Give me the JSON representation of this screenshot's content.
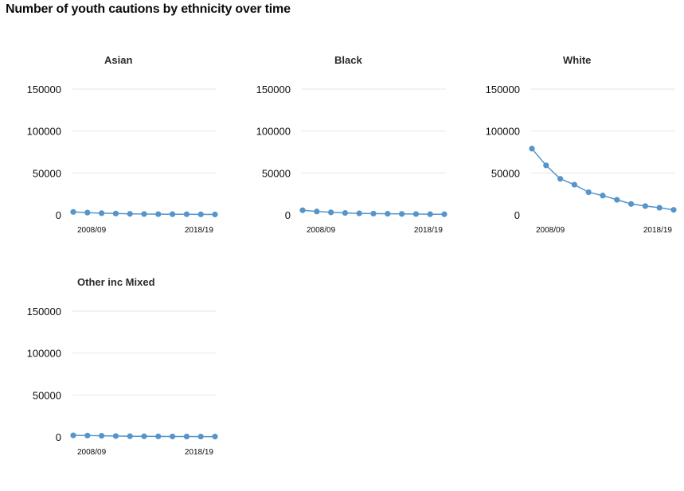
{
  "title": "Number of youth cautions by ethnicity over time",
  "colors": {
    "series": "#5694ca",
    "grid": "#e6e6e6"
  },
  "chart_data": [
    {
      "type": "line",
      "title": "Asian",
      "x": [
        "2008/09",
        "2009/10",
        "2010/11",
        "2011/12",
        "2012/13",
        "2013/14",
        "2014/15",
        "2015/16",
        "2016/17",
        "2017/18",
        "2018/19"
      ],
      "x_tick_labels": [
        "2008/09",
        "2018/19"
      ],
      "y_ticks": [
        0,
        50000,
        100000,
        150000
      ],
      "ylim": [
        0,
        150000
      ],
      "values": [
        3500,
        2700,
        2000,
        1600,
        1200,
        1000,
        900,
        800,
        700,
        600,
        500
      ],
      "grid": true
    },
    {
      "type": "line",
      "title": "Black",
      "x": [
        "2008/09",
        "2009/10",
        "2010/11",
        "2011/12",
        "2012/13",
        "2013/14",
        "2014/15",
        "2015/16",
        "2016/17",
        "2017/18",
        "2018/19"
      ],
      "x_tick_labels": [
        "2008/09",
        "2018/19"
      ],
      "y_ticks": [
        0,
        50000,
        100000,
        150000
      ],
      "ylim": [
        0,
        150000
      ],
      "values": [
        5500,
        4000,
        3000,
        2300,
        1800,
        1500,
        1300,
        1100,
        1000,
        800,
        700
      ],
      "grid": true
    },
    {
      "type": "line",
      "title": "White",
      "x": [
        "2008/09",
        "2009/10",
        "2010/11",
        "2011/12",
        "2012/13",
        "2013/14",
        "2014/15",
        "2015/16",
        "2016/17",
        "2017/18",
        "2018/19"
      ],
      "x_tick_labels": [
        "2008/09",
        "2018/19"
      ],
      "y_ticks": [
        0,
        50000,
        100000,
        150000
      ],
      "ylim": [
        0,
        150000
      ],
      "values": [
        79000,
        59000,
        43000,
        36000,
        27000,
        23000,
        18000,
        13000,
        10500,
        8500,
        6000
      ],
      "grid": true
    },
    {
      "type": "line",
      "title": "Other inc Mixed",
      "x": [
        "2008/09",
        "2009/10",
        "2010/11",
        "2011/12",
        "2012/13",
        "2013/14",
        "2014/15",
        "2015/16",
        "2016/17",
        "2017/18",
        "2018/19"
      ],
      "x_tick_labels": [
        "2008/09",
        "2018/19"
      ],
      "y_ticks": [
        0,
        50000,
        100000,
        150000
      ],
      "ylim": [
        0,
        150000
      ],
      "values": [
        1800,
        1600,
        1300,
        1000,
        800,
        700,
        600,
        500,
        450,
        400,
        350
      ],
      "grid": true
    }
  ]
}
